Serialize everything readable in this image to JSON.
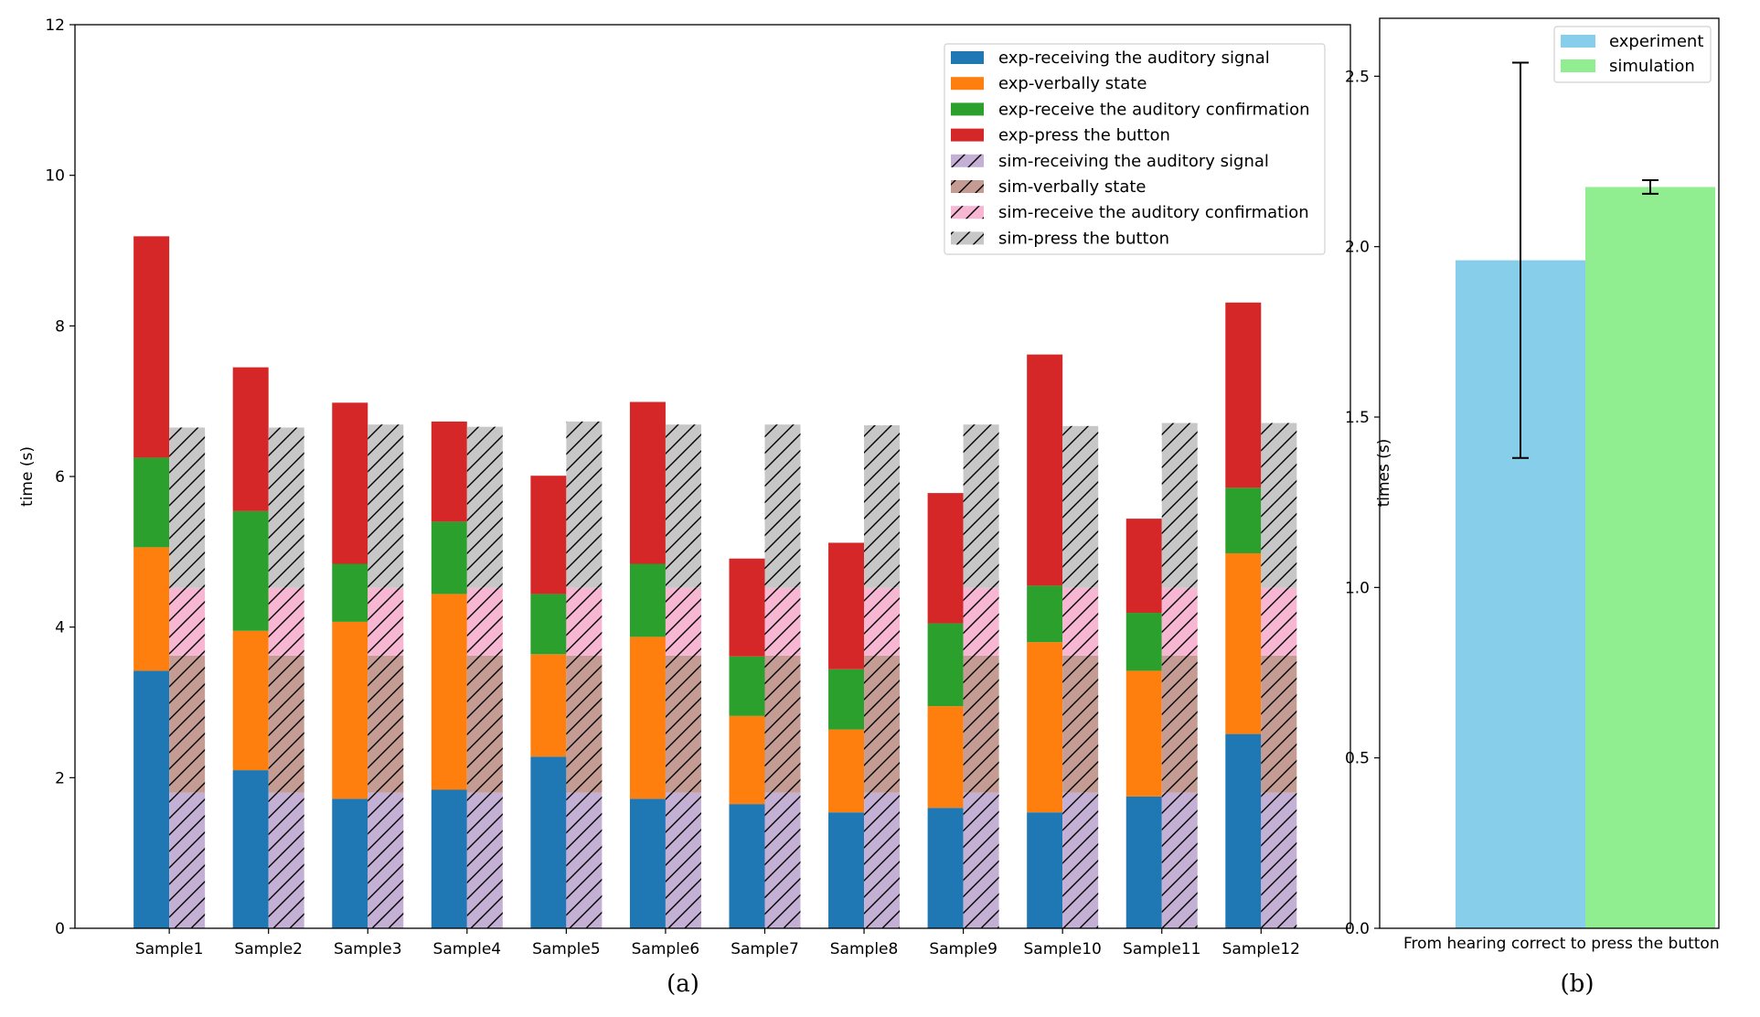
{
  "colors": {
    "exp": [
      "#1f77b4",
      "#ff7f0e",
      "#2ca02c",
      "#d62728"
    ],
    "sim": [
      "#c5b0d5",
      "#c49c94",
      "#f7b6d2",
      "#c7c7c7"
    ],
    "experiment": "#87ceeb",
    "simulation": "#90ee90"
  },
  "chart_data": [
    {
      "type": "bar",
      "stacked": true,
      "caption": "(a)",
      "ylabel": "time (s)",
      "xlabel": "",
      "ylim": [
        0,
        12
      ],
      "yticks": [
        "0",
        "2",
        "4",
        "6",
        "8",
        "10",
        "12"
      ],
      "categories": [
        "Sample1",
        "Sample2",
        "Sample3",
        "Sample4",
        "Sample5",
        "Sample6",
        "Sample7",
        "Sample8",
        "Sample9",
        "Sample10",
        "Sample11",
        "Sample12"
      ],
      "legend_position": "top-right",
      "legend": [
        "exp-receiving the auditory signal",
        "exp-verbally state",
        "exp-receive the auditory confirmation",
        "exp-press the button",
        "sim-receiving the auditory signal",
        "sim-verbally state",
        "sim-receive the auditory confirmation",
        "sim-press the button"
      ],
      "series": [
        {
          "name": "exp-receiving the auditory signal",
          "group": "exp",
          "values": [
            3.42,
            2.1,
            1.72,
            1.84,
            2.28,
            1.72,
            1.65,
            1.54,
            1.6,
            1.54,
            1.75,
            2.58
          ]
        },
        {
          "name": "exp-verbally state",
          "group": "exp",
          "values": [
            1.64,
            1.85,
            2.35,
            2.6,
            1.36,
            2.15,
            1.17,
            1.1,
            1.35,
            2.26,
            1.67,
            2.4
          ]
        },
        {
          "name": "exp-receive the auditory confirmation",
          "group": "exp",
          "values": [
            1.19,
            1.59,
            0.77,
            0.96,
            0.8,
            0.97,
            0.79,
            0.8,
            1.1,
            0.75,
            0.77,
            0.87
          ]
        },
        {
          "name": "exp-press the button",
          "group": "exp",
          "values": [
            2.94,
            1.91,
            2.14,
            1.33,
            1.57,
            2.15,
            1.3,
            1.68,
            1.73,
            3.07,
            1.25,
            2.46
          ]
        },
        {
          "name": "sim-receiving the auditory signal",
          "group": "sim",
          "values": [
            1.8,
            1.8,
            1.8,
            1.8,
            1.8,
            1.8,
            1.8,
            1.8,
            1.8,
            1.8,
            1.8,
            1.8
          ]
        },
        {
          "name": "sim-verbally state",
          "group": "sim",
          "values": [
            1.82,
            1.82,
            1.82,
            1.82,
            1.82,
            1.82,
            1.82,
            1.82,
            1.82,
            1.82,
            1.82,
            1.82
          ]
        },
        {
          "name": "sim-receive the auditory confirmation",
          "group": "sim",
          "values": [
            0.9,
            0.9,
            0.9,
            0.9,
            0.9,
            0.9,
            0.9,
            0.9,
            0.9,
            0.9,
            0.9,
            0.9
          ]
        },
        {
          "name": "sim-press the button",
          "group": "sim",
          "values": [
            2.13,
            2.13,
            2.17,
            2.14,
            2.21,
            2.17,
            2.17,
            2.16,
            2.17,
            2.15,
            2.19,
            2.19
          ]
        }
      ]
    },
    {
      "type": "bar",
      "caption": "(b)",
      "ylabel": "times (s)",
      "xlabel": "",
      "ylim": [
        0,
        2.67
      ],
      "yticks": [
        "0.0",
        "0.5",
        "1.0",
        "1.5",
        "2.0",
        "2.5"
      ],
      "categories": [
        "From hearing correct to press the button"
      ],
      "legend_position": "top-right",
      "series": [
        {
          "name": "experiment",
          "values": [
            1.96
          ],
          "error": [
            0.58
          ]
        },
        {
          "name": "simulation",
          "values": [
            2.175
          ],
          "error": [
            0.02
          ]
        }
      ]
    }
  ]
}
